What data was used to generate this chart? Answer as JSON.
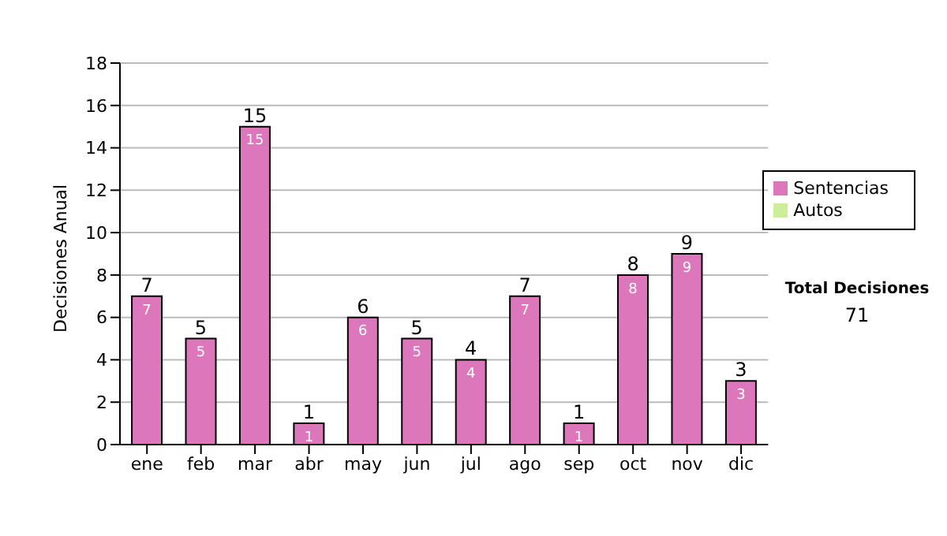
{
  "chart_data": {
    "type": "bar",
    "stacked": true,
    "ylabel": "Decisiones Anual",
    "categories": [
      "ene",
      "feb",
      "mar",
      "abr",
      "may",
      "jun",
      "jul",
      "ago",
      "sep",
      "oct",
      "nov",
      "dic"
    ],
    "series": [
      {
        "name": "Sentencias",
        "color": "#dd77bb",
        "values": [
          7,
          5,
          15,
          1,
          6,
          5,
          4,
          7,
          1,
          8,
          9,
          3
        ]
      },
      {
        "name": "Autos",
        "color": "#ccee99",
        "values": [
          null,
          null,
          null,
          null,
          null,
          null,
          null,
          null,
          null,
          null,
          null,
          null
        ]
      }
    ],
    "totals": [
      "7",
      "5",
      "15",
      "1",
      "6",
      "5",
      "4",
      "7",
      "1",
      "8",
      "9",
      "3"
    ],
    "data_labels": true,
    "ylim": [
      0,
      18
    ],
    "yticks": [
      0,
      2,
      4,
      6,
      8,
      10,
      12,
      14,
      16,
      18
    ],
    "grid": "y",
    "legend": "right",
    "annotations": [
      "Total Decisiones",
      "71"
    ]
  }
}
